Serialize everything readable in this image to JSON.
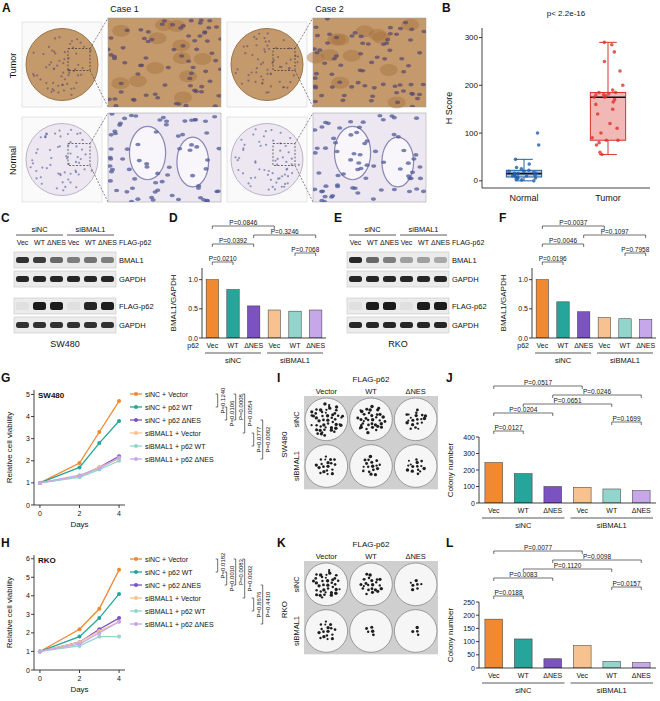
{
  "image_panels": [
    {
      "panel": "A",
      "columns": [
        "Case 1",
        "Case 2"
      ],
      "rows": [
        "Tumor",
        "Normal"
      ]
    }
  ],
  "blots": [
    {
      "panel": "C",
      "groups": [
        "siNC",
        "siBMAL1"
      ],
      "lanes": [
        "Vec",
        "WT",
        "ΔNES",
        "Vec",
        "WT",
        "ΔNES"
      ],
      "header": "FLAG-p62",
      "bands": [
        {
          "label": "BMAL1",
          "intensity": [
            0.85,
            0.8,
            0.6,
            0.5,
            0.55,
            0.5
          ]
        },
        {
          "label": "GAPDH",
          "intensity": [
            0.9,
            0.9,
            0.9,
            0.9,
            0.9,
            0.9
          ]
        },
        {
          "label": "FLAG-p62",
          "intensity": [
            0.05,
            0.95,
            0.95,
            0.05,
            0.9,
            0.95
          ]
        },
        {
          "label": "GAPDH",
          "intensity": [
            0.85,
            0.85,
            0.85,
            0.85,
            0.85,
            0.85
          ]
        }
      ],
      "cell_line": "SW480"
    },
    {
      "panel": "E",
      "groups": [
        "siNC",
        "siBMAL1"
      ],
      "lanes": [
        "Vec",
        "WT",
        "ΔNES",
        "Vec",
        "WT",
        "ΔNES"
      ],
      "header": "FLAG-p62",
      "bands": [
        {
          "label": "BMAL1",
          "intensity": [
            0.9,
            0.6,
            0.5,
            0.35,
            0.35,
            0.3
          ]
        },
        {
          "label": "GAPDH",
          "intensity": [
            0.9,
            0.9,
            0.9,
            0.9,
            0.9,
            0.9
          ]
        },
        {
          "label": "FLAG-p62",
          "intensity": [
            0.05,
            0.95,
            0.95,
            0.05,
            0.95,
            0.95
          ]
        },
        {
          "label": "GAPDH",
          "intensity": [
            0.9,
            0.9,
            0.9,
            0.9,
            0.9,
            0.9
          ]
        }
      ],
      "cell_line": "RKO"
    }
  ],
  "dishes": [
    {
      "panel": "I",
      "header": "FLAG-p62",
      "columns": [
        "Vector",
        "WT",
        "ΔNES"
      ],
      "rows": [
        "siNC",
        "siBMAL1"
      ],
      "cell_line": "SW480"
    },
    {
      "panel": "K",
      "header": "FLAG-p62",
      "columns": [
        "Vector",
        "WT",
        "ΔNES"
      ],
      "rows": [
        "siNC",
        "siBMAL1"
      ],
      "cell_line": "RKO"
    }
  ],
  "chart_data": [
    {
      "panel": "B",
      "type": "box",
      "y_label": "H Score",
      "categories": [
        "Normal",
        "Tumor"
      ],
      "colors": [
        "#1f5fa8",
        "#d9342b"
      ],
      "boxes": [
        {
          "min": 0,
          "q1": 8,
          "median": 15,
          "q3": 22,
          "max": 45
        },
        {
          "min": 55,
          "q1": 85,
          "median": 175,
          "q3": 185,
          "max": 290
        }
      ],
      "points": [
        [
          0,
          2,
          3,
          5,
          6,
          8,
          8,
          10,
          10,
          12,
          12,
          14,
          15,
          15,
          16,
          18,
          20,
          20,
          22,
          25,
          28,
          35,
          45,
          75,
          100
        ],
        [
          55,
          60,
          75,
          80,
          85,
          85,
          90,
          100,
          110,
          120,
          140,
          150,
          160,
          165,
          170,
          175,
          175,
          178,
          180,
          180,
          182,
          185,
          185,
          190,
          200,
          230,
          250,
          270,
          285,
          290
        ]
      ],
      "ylim": [
        -15,
        320
      ],
      "yticks": [
        0,
        100,
        200,
        300
      ],
      "annotations": [
        "p< 2.2e-16"
      ]
    },
    {
      "panel": "D",
      "type": "bar",
      "y_label": "BMAL1/GAPDH",
      "row_label": "p62",
      "categories": [
        "Vec",
        "WT",
        "ΔNES",
        "Vec",
        "WT",
        "ΔNES"
      ],
      "groups": [
        "siNC",
        "siBMAL1"
      ],
      "values": [
        1,
        0.83,
        0.55,
        0.48,
        0.46,
        0.48
      ],
      "colors": [
        "#f0892f",
        "#26a69a",
        "#7b52c1",
        "#f7c28f",
        "#93d5cc",
        "#c6a8ea"
      ],
      "ylim": [
        0,
        1.2
      ],
      "yticks": [
        {
          "value": 0,
          "label": "0.0"
        },
        {
          "value": 0.5,
          "label": "0.5"
        },
        {
          "value": 1,
          "label": "1.0"
        }
      ],
      "comparisons": [
        {
          "from": 0,
          "to": 1,
          "label": "P=0.0210"
        },
        {
          "from": 4,
          "to": 5,
          "label": "P=0.7068"
        },
        {
          "from": 0,
          "to": 2,
          "label": "P=0.0392"
        },
        {
          "from": 2,
          "to": 5,
          "label": "P=0.3246"
        },
        {
          "from": 0,
          "to": 3,
          "label": "P=0.0846"
        }
      ]
    },
    {
      "panel": "F",
      "type": "bar",
      "y_label": "BMAL1/GAPDH",
      "row_label": "p62",
      "categories": [
        "Vec",
        "WT",
        "ΔNES",
        "Vec",
        "WT",
        "ΔNES"
      ],
      "groups": [
        "siNC",
        "siBMAL1"
      ],
      "values": [
        1,
        0.62,
        0.45,
        0.35,
        0.33,
        0.32
      ],
      "colors": [
        "#f0892f",
        "#26a69a",
        "#7b52c1",
        "#f7c28f",
        "#93d5cc",
        "#c6a8ea"
      ],
      "ylim": [
        0,
        1.2
      ],
      "yticks": [
        {
          "value": 0,
          "label": "0.0"
        },
        {
          "value": 0.5,
          "label": "0.5"
        },
        {
          "value": 1,
          "label": "1.0"
        }
      ],
      "comparisons": [
        {
          "from": 0,
          "to": 1,
          "label": "P=0.0196"
        },
        {
          "from": 4,
          "to": 5,
          "label": "P=0.7958"
        },
        {
          "from": 0,
          "to": 2,
          "label": "P=0.0046"
        },
        {
          "from": 2,
          "to": 5,
          "label": "P=0.1097"
        },
        {
          "from": 0,
          "to": 3,
          "label": "P=0.0037"
        }
      ]
    },
    {
      "panel": "G",
      "type": "line",
      "title": "SW480",
      "x_label": "Days",
      "y_label": "Relative cell viability",
      "legend": "right",
      "marker": "circle",
      "x": [
        0,
        2,
        3,
        4
      ],
      "xlim": [
        -0.3,
        4.3
      ],
      "xticks": [
        0,
        2,
        4
      ],
      "ylim": [
        0,
        5.2
      ],
      "yticks": [
        0,
        1,
        2,
        3,
        4,
        5
      ],
      "series": [
        {
          "name": "siNC + Vector",
          "color": "#f0892f",
          "values": [
            1,
            1.9,
            3.3,
            4.7
          ]
        },
        {
          "name": "siNC + p62 WT",
          "color": "#26a69a",
          "values": [
            1,
            1.7,
            2.8,
            3.8
          ]
        },
        {
          "name": "siNC + p62 ΔNES",
          "color": "#7b52c1",
          "values": [
            1,
            1.3,
            1.7,
            2.2
          ]
        },
        {
          "name": "siBMAL1 + Vector",
          "color": "#f7c28f",
          "values": [
            1,
            1.3,
            1.7,
            2.1
          ]
        },
        {
          "name": "siBMAL1 + p62 WT",
          "color": "#93d5cc",
          "values": [
            1,
            1.25,
            1.6,
            2.0
          ]
        },
        {
          "name": "siBMAL1 + p62 ΔNES",
          "color": "#c6a8ea",
          "values": [
            1,
            1.35,
            1.65,
            2.15
          ]
        }
      ],
      "comparisons": [
        {
          "from": 0,
          "to": 1,
          "label": "P=0.1240"
        },
        {
          "from": 1,
          "to": 2,
          "label": "P=0.0106"
        },
        {
          "from": 0,
          "to": 2,
          "label": "P=0.0008"
        },
        {
          "from": 0,
          "to": 3,
          "label": "P=0.0054"
        },
        {
          "from": 3,
          "to": 4,
          "label": "P=0.0777"
        },
        {
          "from": 2,
          "to": 5,
          "label": "P=0.0082"
        }
      ]
    },
    {
      "panel": "H",
      "type": "line",
      "title": "RKO",
      "x_label": "Days",
      "y_label": "Relative cell viability",
      "legend": "right",
      "marker": "circle",
      "x": [
        0,
        2,
        3,
        4
      ],
      "xlim": [
        -0.3,
        4.3
      ],
      "xticks": [
        0,
        2,
        4
      ],
      "ylim": [
        0,
        6.2
      ],
      "yticks": [
        0,
        1,
        2,
        3,
        4,
        5,
        6
      ],
      "series": [
        {
          "name": "siNC + Vector",
          "color": "#f0892f",
          "values": [
            1,
            2.2,
            3.3,
            5.4
          ]
        },
        {
          "name": "siNC + p62 WT",
          "color": "#26a69a",
          "values": [
            1,
            1.8,
            2.8,
            4.1
          ]
        },
        {
          "name": "siNC + p62 ΔNES",
          "color": "#7b52c1",
          "values": [
            1,
            1.5,
            2.2,
            2.8
          ]
        },
        {
          "name": "siBMAL1 + Vector",
          "color": "#f7c28f",
          "values": [
            1,
            1.5,
            2.1,
            2.6
          ]
        },
        {
          "name": "siBMAL1 + p62 WT",
          "color": "#93d5cc",
          "values": [
            1,
            1.3,
            1.8,
            1.8
          ]
        },
        {
          "name": "siBMAL1 + p62 ΔNES",
          "color": "#c6a8ea",
          "values": [
            1,
            1.4,
            2.0,
            2.6
          ]
        }
      ],
      "comparisons": [
        {
          "from": 0,
          "to": 1,
          "label": "P=0.0182"
        },
        {
          "from": 1,
          "to": 2,
          "label": "P=0.0010"
        },
        {
          "from": 0,
          "to": 2,
          "label": "P=0.0083"
        },
        {
          "from": 0,
          "to": 3,
          "label": "P=0.0002"
        },
        {
          "from": 3,
          "to": 4,
          "label": "P=0.8676"
        },
        {
          "from": 2,
          "to": 5,
          "label": "P=0.4410"
        }
      ]
    },
    {
      "panel": "J",
      "type": "bar",
      "y_label": "Colony number",
      "categories": [
        "Vec",
        "WT",
        "ΔNES",
        "Vec",
        "WT",
        "ΔNES"
      ],
      "groups": [
        "siNC",
        "siBMAL1"
      ],
      "values": [
        245,
        178,
        100,
        95,
        85,
        75
      ],
      "colors": [
        "#f0892f",
        "#26a69a",
        "#7b52c1",
        "#f7c28f",
        "#93d5cc",
        "#c6a8ea"
      ],
      "ylim": [
        0,
        400
      ],
      "yticks": [
        0,
        100,
        200,
        300,
        400
      ],
      "comparisons": [
        {
          "from": 0,
          "to": 1,
          "label": "P=0.0127"
        },
        {
          "from": 4,
          "to": 5,
          "label": "P=0.1699"
        },
        {
          "from": 0,
          "to": 2,
          "label": "P=0.0204"
        },
        {
          "from": 1,
          "to": 4,
          "label": "P=0.0651"
        },
        {
          "from": 2,
          "to": 5,
          "label": "P=0.0246"
        },
        {
          "from": 0,
          "to": 3,
          "label": "P=0.0517"
        }
      ]
    },
    {
      "panel": "L",
      "type": "bar",
      "y_label": "Colony number",
      "categories": [
        "Vec",
        "WT",
        "ΔNES",
        "Vec",
        "WT",
        "ΔNES"
      ],
      "groups": [
        "siNC",
        "siBMAL1"
      ],
      "values": [
        185,
        110,
        35,
        85,
        25,
        20
      ],
      "colors": [
        "#f0892f",
        "#26a69a",
        "#7b52c1",
        "#f7c28f",
        "#93d5cc",
        "#c6a8ea"
      ],
      "ylim": [
        0,
        250
      ],
      "yticks": [
        0,
        50,
        100,
        150,
        200,
        250
      ],
      "comparisons": [
        {
          "from": 0,
          "to": 1,
          "label": "P=0.0188"
        },
        {
          "from": 4,
          "to": 5,
          "label": "P=0.0157"
        },
        {
          "from": 0,
          "to": 2,
          "label": "P=0.0083"
        },
        {
          "from": 1,
          "to": 4,
          "label": "P=0.1120"
        },
        {
          "from": 2,
          "to": 5,
          "label": "P=0.0098"
        },
        {
          "from": 0,
          "to": 3,
          "label": "P=0.0077"
        }
      ]
    }
  ]
}
